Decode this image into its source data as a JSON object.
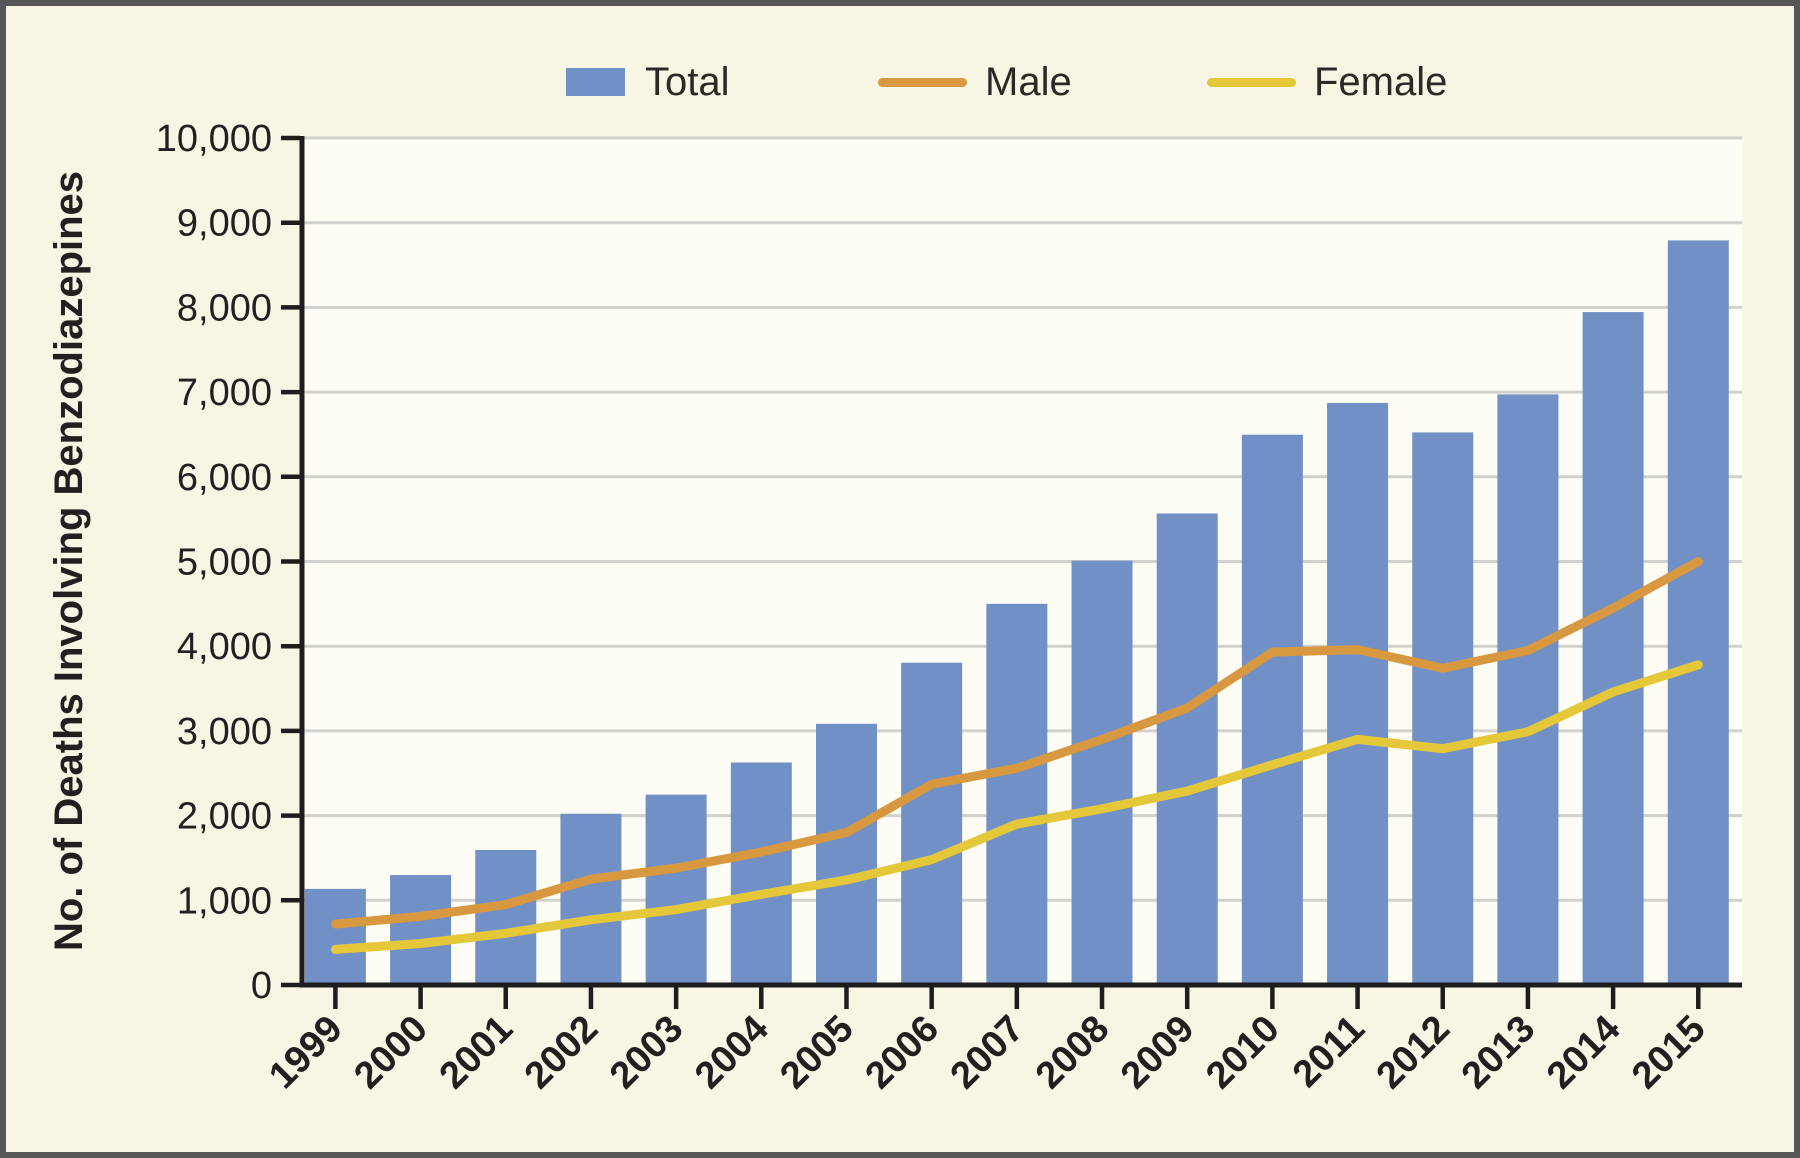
{
  "legend": {
    "items": [
      {
        "label": "Total",
        "swatch": "square",
        "color": "#7190c6"
      },
      {
        "label": "Male",
        "swatch": "line",
        "color": "#d79840"
      },
      {
        "label": "Female",
        "swatch": "line",
        "color": "#e5c83a"
      }
    ]
  },
  "colors": {
    "background": "#f8f5e5",
    "plot_background": "#fdfdf5",
    "frame": "#57575a",
    "gridline": "#d2d1cd",
    "axis": "#1e1c1c",
    "text": "#231f20",
    "bar": "#7190c6",
    "male_line": "#d79840",
    "female_line": "#e5c83a"
  },
  "chart_data": {
    "type": "bar",
    "title": "",
    "xlabel": "",
    "ylabel": "No. of Deaths Involving Benzodiazepines",
    "ylim": [
      0,
      10000
    ],
    "ytick_interval": 1000,
    "grid": true,
    "legend_position": "top",
    "categories": [
      "1999",
      "2000",
      "2001",
      "2002",
      "2003",
      "2004",
      "2005",
      "2006",
      "2007",
      "2008",
      "2009",
      "2010",
      "2011",
      "2012",
      "2013",
      "2014",
      "2015"
    ],
    "series": [
      {
        "name": "Total",
        "type": "bar",
        "color": "#7190c6",
        "values": [
          1135,
          1298,
          1594,
          2022,
          2248,
          2627,
          3084,
          3805,
          4500,
          5010,
          5567,
          6497,
          6872,
          6524,
          6973,
          7945,
          8791
        ]
      },
      {
        "name": "Male",
        "type": "line",
        "color": "#d79840",
        "values": [
          720,
          810,
          950,
          1250,
          1380,
          1570,
          1800,
          2370,
          2560,
          2900,
          3270,
          3930,
          3960,
          3740,
          3950,
          4450,
          5000
        ]
      },
      {
        "name": "Female",
        "type": "line",
        "color": "#e5c83a",
        "values": [
          420,
          490,
          610,
          770,
          890,
          1070,
          1240,
          1480,
          1900,
          2080,
          2290,
          2600,
          2900,
          2790,
          2990,
          3460,
          3780
        ]
      }
    ]
  }
}
